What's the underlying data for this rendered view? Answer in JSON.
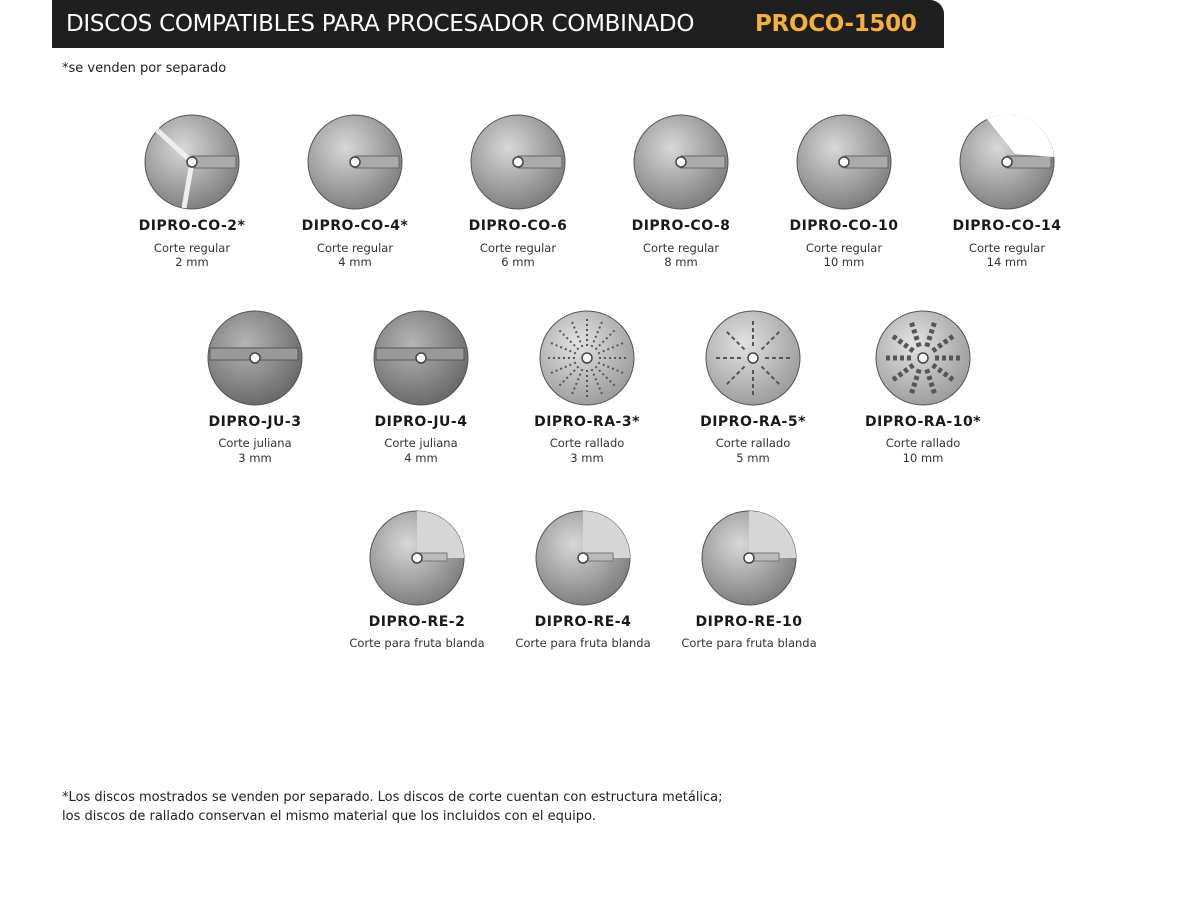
{
  "header": {
    "title": "DISCOS COMPATIBLES PARA PROCESADOR COMBINADO",
    "highlight": "PROCO-1500"
  },
  "note": "*se venden por separado",
  "rows": [
    [
      {
        "code": "DIPRO-CO-2*",
        "desc": "Corte regular",
        "size": "2 mm"
      },
      {
        "code": "DIPRO-CO-4*",
        "desc": "Corte regular",
        "size": "4 mm"
      },
      {
        "code": "DIPRO-CO-6",
        "desc": "Corte regular",
        "size": "6 mm"
      },
      {
        "code": "DIPRO-CO-8",
        "desc": "Corte regular",
        "size": "8 mm"
      },
      {
        "code": "DIPRO-CO-10",
        "desc": "Corte regular",
        "size": "10 mm"
      },
      {
        "code": "DIPRO-CO-14",
        "desc": "Corte regular",
        "size": "14 mm"
      }
    ],
    [
      {
        "code": "DIPRO-JU-3",
        "desc": "Corte juliana",
        "size": "3 mm"
      },
      {
        "code": "DIPRO-JU-4",
        "desc": "Corte juliana",
        "size": "4 mm"
      },
      {
        "code": "DIPRO-RA-3*",
        "desc": "Corte rallado",
        "size": "3 mm"
      },
      {
        "code": "DIPRO-RA-5*",
        "desc": "Corte rallado",
        "size": "5 mm"
      },
      {
        "code": "DIPRO-RA-10*",
        "desc": "Corte rallado",
        "size": "10 mm"
      }
    ],
    [
      {
        "code": "DIPRO-RE-2",
        "desc": "Corte para fruta blanda"
      },
      {
        "code": "DIPRO-RE-4",
        "desc": "Corte para fruta blanda"
      },
      {
        "code": "DIPRO-RE-10",
        "desc": "Corte para fruta blanda"
      }
    ]
  ],
  "footer": [
    "*Los discos mostrados se venden por separado. Los discos de corte cuentan con estructura metálica;",
    "los discos de rallado conservan el mismo material que los incluidos con el equipo."
  ]
}
